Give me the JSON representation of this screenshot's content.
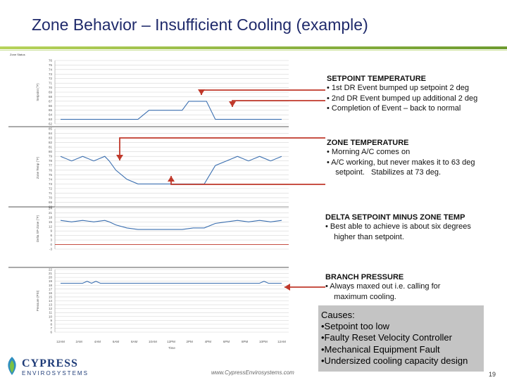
{
  "slide": {
    "title": "Zone Behavior – Insufficient Cooling (example)",
    "website": "www.CypressEnvirosystems.com",
    "page_number": "19",
    "brand_color": "#1f2a6b",
    "logo": {
      "name": "CYPRESS",
      "sub": "ENVIROSYSTEMS"
    }
  },
  "annotations": {
    "setpoint": {
      "heading": "SETPOINT TEMPERATURE",
      "lines": [
        "• 1st DR Event bumped up setpoint 2 deg",
        "• 2nd DR Event bumped up additional 2 deg",
        "• Completion of Event – back to normal"
      ]
    },
    "zone": {
      "heading": "ZONE TEMPERATURE",
      "lines": [
        "•  Morning A/C comes on",
        "•  A/C working, but never makes it to 63 deg",
        "    setpoint.   Stabilizes at 73 deg."
      ]
    },
    "delta": {
      "heading": "DELTA SETPOINT MINUS ZONE TEMP",
      "lines": [
        "•  Best able to achieve is about six degrees",
        "    higher than setpoint."
      ]
    },
    "branch": {
      "heading": "BRANCH PRESSURE",
      "lines": [
        "•  Always maxed out i.e. calling for",
        "    maximum cooling."
      ]
    }
  },
  "causes": {
    "heading": "Causes:",
    "items": [
      "•Setpoint too low",
      "•Faulty Reset Velocity Controller",
      "•Mechanical Equipment Fault",
      "•Undersized cooling capacity design"
    ]
  },
  "chart_data": [
    {
      "type": "line",
      "title": "Zone Status",
      "ylabel": "Setpoint (°F)",
      "ticks": [
        "76",
        "75",
        "74",
        "73",
        "72",
        "71",
        "70",
        "69",
        "68",
        "67",
        "66",
        "65",
        "64",
        "63",
        "62"
      ],
      "ylim": [
        62,
        76
      ],
      "x": [
        0,
        0.1,
        0.2,
        0.22,
        0.35,
        0.4,
        0.47,
        0.55,
        0.58,
        0.63,
        0.66,
        0.7,
        0.75,
        0.8,
        0.9,
        1.0
      ],
      "values": [
        63,
        63,
        63,
        63,
        63,
        65,
        65,
        65,
        67,
        67,
        67,
        63,
        63,
        63,
        63,
        63
      ]
    },
    {
      "type": "line",
      "ylabel": "Zone Temp (°F)",
      "ticks": [
        "85",
        "84",
        "83",
        "82",
        "81",
        "80",
        "79",
        "78",
        "77",
        "76",
        "75",
        "74",
        "73",
        "72",
        "71",
        "70",
        "69",
        "68"
      ],
      "ylim": [
        68,
        85
      ],
      "x": [
        0,
        0.05,
        0.1,
        0.15,
        0.2,
        0.22,
        0.25,
        0.3,
        0.35,
        0.4,
        0.45,
        0.5,
        0.55,
        0.6,
        0.65,
        0.7,
        0.75,
        0.8,
        0.85,
        0.9,
        0.95,
        1.0
      ],
      "values": [
        79,
        78,
        79,
        78,
        79,
        78,
        76,
        74,
        73,
        73,
        73,
        73,
        73,
        73,
        73,
        77,
        78,
        79,
        78,
        79,
        78,
        79
      ]
    },
    {
      "type": "line",
      "ylabel": "Delta SP-Zone (°F)",
      "ticks": [
        "24",
        "21",
        "18",
        "15",
        "12",
        "9",
        "6",
        "3",
        "0",
        "-3"
      ],
      "ylim": [
        -3,
        24
      ],
      "x": [
        0,
        0.05,
        0.1,
        0.15,
        0.2,
        0.22,
        0.25,
        0.3,
        0.35,
        0.4,
        0.45,
        0.5,
        0.55,
        0.6,
        0.65,
        0.7,
        0.75,
        0.8,
        0.85,
        0.9,
        0.95,
        1.0
      ],
      "values": [
        16,
        15,
        16,
        15,
        16,
        15,
        13,
        11,
        10,
        10,
        10,
        10,
        10,
        11,
        11,
        14,
        15,
        16,
        15,
        16,
        15,
        16
      ]
    },
    {
      "type": "line",
      "ylabel": "Pressure (PSI)",
      "xlabel": "Time",
      "ticks": [
        "22",
        "21",
        "20",
        "19",
        "18",
        "17",
        "16",
        "15",
        "14",
        "13",
        "12",
        "11",
        "10",
        "9",
        "8",
        "7",
        "6"
      ],
      "ylim": [
        6,
        22
      ],
      "x": [
        0,
        0.1,
        0.12,
        0.14,
        0.16,
        0.18,
        0.3,
        0.45,
        0.6,
        0.75,
        0.9,
        0.92,
        0.94,
        1.0
      ],
      "values": [
        18.5,
        18.5,
        19,
        18.5,
        19,
        18.5,
        18.5,
        18.5,
        18.5,
        18.5,
        18.5,
        19,
        18.5,
        18.5
      ],
      "x_tick_labels": [
        "12AM",
        "2AM",
        "4AM",
        "6AM",
        "8AM",
        "10AM",
        "12PM",
        "2PM",
        "4PM",
        "6PM",
        "8PM",
        "10PM",
        "12AM"
      ]
    }
  ]
}
